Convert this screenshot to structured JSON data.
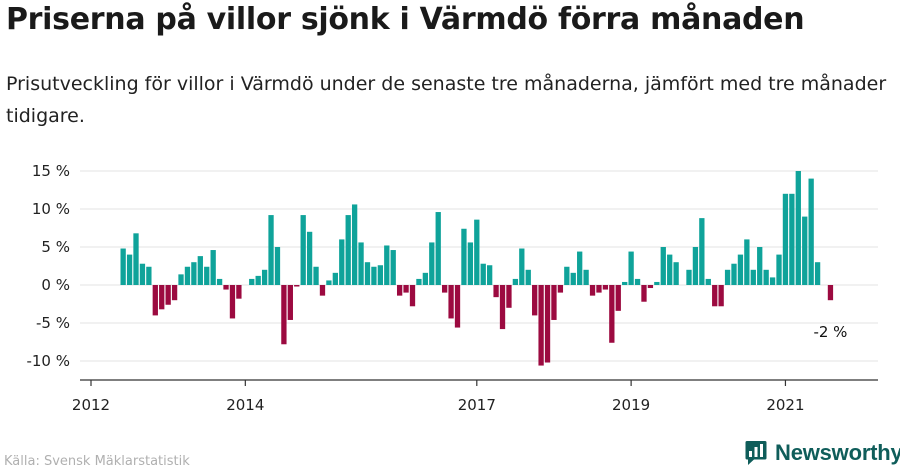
{
  "header": {
    "title": "Priserna på villor sjönk i Värmdö förra månaden",
    "subtitle": "Prisutveckling för villor i Värmdö under de senaste tre månaderna, jämfört med tre månader tidigare."
  },
  "footer": {
    "source": "Källa: Svensk Mäklarstatistik",
    "brand": "Newsworthy"
  },
  "colors": {
    "positive": "#0fa39a",
    "negative": "#9c0a40",
    "grid": "#e3e3e3",
    "axis": "#333333",
    "brand": "#0f5d5a"
  },
  "chart_data": {
    "type": "bar",
    "title": "Prisutveckling för villor i Värmdö",
    "xlabel": "",
    "ylabel": "",
    "ylim": [
      -12,
      16
    ],
    "grid": true,
    "yticks": [
      15,
      10,
      5,
      0,
      -5,
      -10
    ],
    "ytick_labels": [
      "15 %",
      "10 %",
      "5 %",
      "0 %",
      "-5 %",
      "-10 %"
    ],
    "xticks": [
      2012,
      2014,
      2017,
      2019,
      2021
    ],
    "xtick_labels": [
      "2012",
      "2014",
      "2017",
      "2019",
      "2021"
    ],
    "start_year": 2012,
    "start_month": 6,
    "annotation": "-2 %",
    "values": [
      4.8,
      4.0,
      6.8,
      2.8,
      2.4,
      -4.0,
      -3.2,
      -2.6,
      -2.0,
      1.4,
      2.4,
      3.0,
      3.8,
      2.4,
      4.6,
      0.8,
      -0.6,
      -4.4,
      -1.8,
      0,
      0.8,
      1.2,
      2.0,
      9.2,
      5.0,
      -7.8,
      -4.6,
      -0.2,
      9.2,
      7.0,
      2.4,
      -1.4,
      0.6,
      1.6,
      6.0,
      9.2,
      10.6,
      5.6,
      3.0,
      2.4,
      2.6,
      5.2,
      4.6,
      -1.4,
      -1.0,
      -2.8,
      0.8,
      1.6,
      5.6,
      9.6,
      -1.0,
      -4.4,
      -5.6,
      7.4,
      5.6,
      8.6,
      2.8,
      2.6,
      -1.6,
      -5.8,
      -3.0,
      0.8,
      4.8,
      2.0,
      -4.0,
      -10.6,
      -10.2,
      -4.6,
      -1.0,
      2.4,
      1.6,
      4.4,
      2.0,
      -1.4,
      -1.0,
      -0.6,
      -7.6,
      -3.4,
      0.4,
      4.4,
      0.8,
      -2.2,
      -0.4,
      0.4,
      5.0,
      4.0,
      3.0,
      0,
      2.0,
      5.0,
      8.8,
      0.8,
      -2.8,
      -2.8,
      2.0,
      2.8,
      4.0,
      6.0,
      2.0,
      5.0,
      2.0,
      1.0,
      4.0,
      12.0,
      12.0,
      15.0,
      9.0,
      14.0,
      3.0,
      0,
      -2.0
    ]
  }
}
